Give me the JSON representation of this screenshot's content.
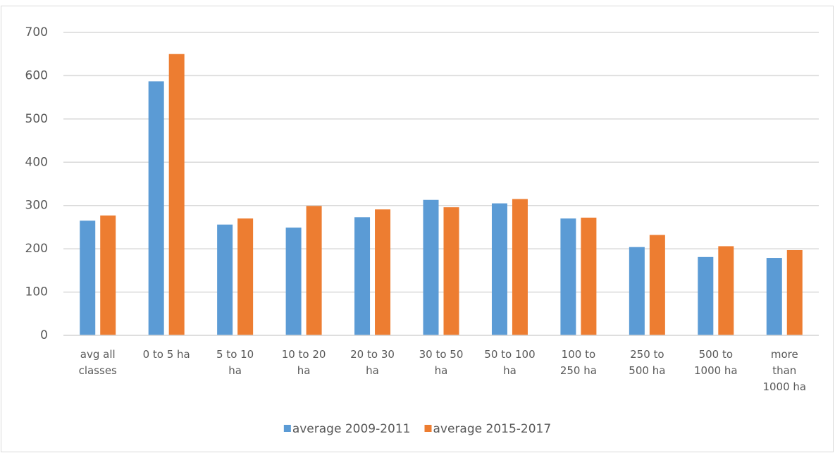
{
  "chart_data": {
    "type": "bar",
    "categories": [
      "avg all classes",
      "0 to 5 ha",
      "5 to 10 ha",
      "10 to 20 ha",
      "20 to 30 ha",
      "30 to 50 ha",
      "50 to 100 ha",
      "100 to 250 ha",
      "250 to 500 ha",
      "500 to 1000 ha",
      "more than 1000 ha"
    ],
    "series": [
      {
        "name": "average 2009-2011",
        "color": "#5b9bd5",
        "values": [
          265,
          587,
          256,
          249,
          273,
          313,
          305,
          270,
          204,
          181,
          179
        ]
      },
      {
        "name": "average 2015-2017",
        "color": "#ed7d31",
        "values": [
          277,
          650,
          270,
          299,
          291,
          296,
          315,
          272,
          232,
          206,
          197
        ]
      }
    ],
    "ylim": [
      0,
      700
    ],
    "yticks": [
      0,
      100,
      200,
      300,
      400,
      500,
      600,
      700
    ],
    "grid": true,
    "legend": "bottom"
  }
}
